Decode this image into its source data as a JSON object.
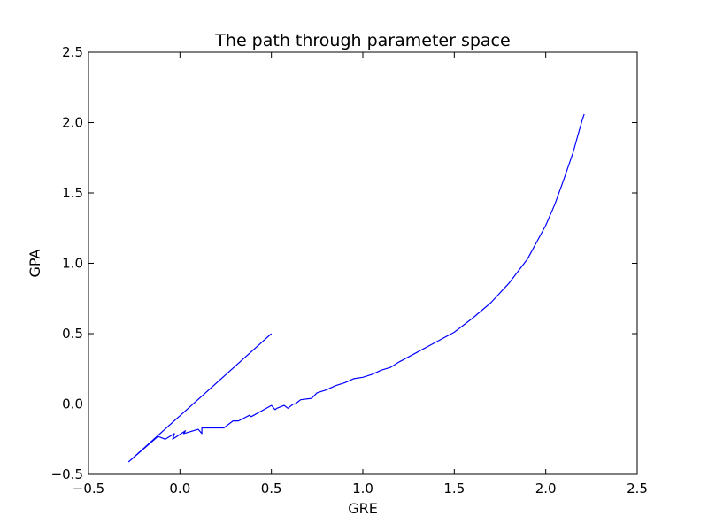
{
  "chart_data": {
    "type": "line",
    "title": "The path through parameter space",
    "xlabel": "GRE",
    "ylabel": "GPA",
    "xlim": [
      -0.5,
      2.5
    ],
    "ylim": [
      -0.5,
      2.5
    ],
    "xticks": [
      -0.5,
      0.0,
      0.5,
      1.0,
      1.5,
      2.0,
      2.5
    ],
    "xtick_labels": [
      "−0.5",
      "0.0",
      "0.5",
      "1.0",
      "1.5",
      "2.0",
      "2.5"
    ],
    "yticks": [
      -0.5,
      0.0,
      0.5,
      1.0,
      1.5,
      2.0,
      2.5
    ],
    "ytick_labels": [
      "−0.5",
      "0.0",
      "0.5",
      "1.0",
      "1.5",
      "2.0",
      "2.5"
    ],
    "grid": false,
    "series": [
      {
        "color": "#0000ff",
        "x": [
          0.5,
          -0.28,
          -0.12,
          -0.08,
          -0.03,
          -0.04,
          0.03,
          0.02,
          0.1,
          0.12,
          0.12,
          0.15,
          0.24,
          0.29,
          0.32,
          0.38,
          0.39,
          0.5,
          0.52,
          0.53,
          0.57,
          0.59,
          0.62,
          0.63,
          0.66,
          0.72,
          0.75,
          0.8,
          0.85,
          0.9,
          0.95,
          1.0,
          1.05,
          1.1,
          1.15,
          1.2,
          1.3,
          1.4,
          1.5,
          1.6,
          1.7,
          1.8,
          1.9,
          2.0,
          2.05,
          2.1,
          2.15,
          2.18,
          2.2,
          2.21
        ],
        "y": [
          0.5,
          -0.41,
          -0.23,
          -0.25,
          -0.21,
          -0.25,
          -0.19,
          -0.21,
          -0.18,
          -0.21,
          -0.17,
          -0.17,
          -0.17,
          -0.12,
          -0.12,
          -0.08,
          -0.09,
          -0.01,
          -0.04,
          -0.03,
          -0.01,
          -0.03,
          0.0,
          0.0,
          0.03,
          0.04,
          0.08,
          0.1,
          0.13,
          0.15,
          0.18,
          0.19,
          0.21,
          0.24,
          0.26,
          0.3,
          0.37,
          0.44,
          0.51,
          0.61,
          0.72,
          0.86,
          1.03,
          1.27,
          1.42,
          1.6,
          1.79,
          1.93,
          2.02,
          2.06
        ]
      }
    ]
  }
}
